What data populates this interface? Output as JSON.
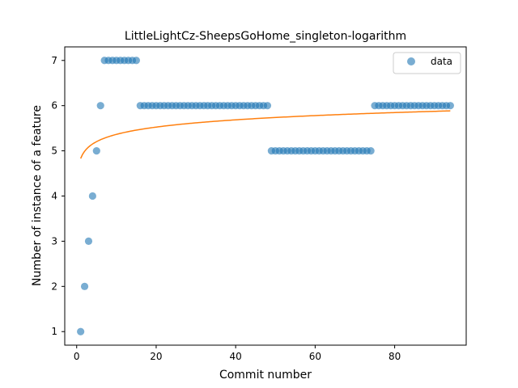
{
  "chart_data": {
    "type": "scatter",
    "title": "LittleLightCz-SheepsGoHome_singleton-logarithm",
    "xlabel": "Commit number",
    "ylabel": "Number of instance of a feature",
    "xlim": [
      -3,
      98
    ],
    "ylim": [
      0.7,
      7.3
    ],
    "xticks": [
      0,
      20,
      40,
      60,
      80
    ],
    "yticks": [
      1,
      2,
      3,
      4,
      5,
      6,
      7
    ],
    "grid": false,
    "legend": {
      "position": "top-right",
      "entries": [
        "data"
      ]
    },
    "colors": {
      "points": "#1f77b4",
      "fit": "#ff7f0e"
    },
    "series": [
      {
        "name": "data",
        "kind": "scatter",
        "x": [
          1,
          2,
          3,
          4,
          5,
          6,
          7,
          8,
          9,
          10,
          11,
          12,
          13,
          14,
          15,
          16,
          17,
          18,
          19,
          20,
          21,
          22,
          23,
          24,
          25,
          26,
          27,
          28,
          29,
          30,
          31,
          32,
          33,
          34,
          35,
          36,
          37,
          38,
          39,
          40,
          41,
          42,
          43,
          44,
          45,
          46,
          47,
          48,
          49,
          50,
          51,
          52,
          53,
          54,
          55,
          56,
          57,
          58,
          59,
          60,
          61,
          62,
          63,
          64,
          65,
          66,
          67,
          68,
          69,
          70,
          71,
          72,
          73,
          74,
          75,
          76,
          77,
          78,
          79,
          80,
          81,
          82,
          83,
          84,
          85,
          86,
          87,
          88,
          89,
          90,
          91,
          92,
          93,
          94
        ],
        "y": [
          1,
          2,
          3,
          4,
          5,
          6,
          7,
          7,
          7,
          7,
          7,
          7,
          7,
          7,
          7,
          6,
          6,
          6,
          6,
          6,
          6,
          6,
          6,
          6,
          6,
          6,
          6,
          6,
          6,
          6,
          6,
          6,
          6,
          6,
          6,
          6,
          6,
          6,
          6,
          6,
          6,
          6,
          6,
          6,
          6,
          6,
          6,
          6,
          5,
          5,
          5,
          5,
          5,
          5,
          5,
          5,
          5,
          5,
          5,
          5,
          5,
          5,
          5,
          5,
          5,
          5,
          5,
          5,
          5,
          5,
          5,
          5,
          5,
          5,
          6,
          6,
          6,
          6,
          6,
          6,
          6,
          6,
          6,
          6,
          6,
          6,
          6,
          6,
          6,
          6,
          6,
          6,
          6,
          6
        ]
      },
      {
        "kind": "line",
        "fit": {
          "a": 4.83,
          "b": 0.232,
          "x_from": 1,
          "x_to": 94
        }
      }
    ]
  }
}
